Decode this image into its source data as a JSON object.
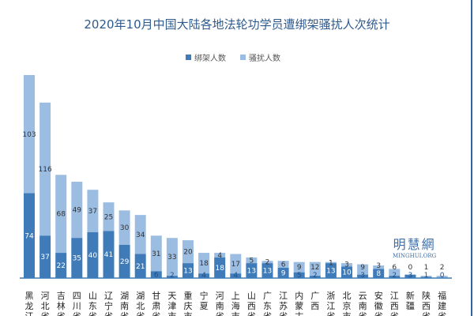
{
  "chart_data": {
    "type": "bar",
    "stacked": true,
    "title": "2020年10月中国大陆各地法轮功学员遭绑架骚扰人次统计",
    "legend_position": "top",
    "grid": false,
    "ylim": [
      0,
      180
    ],
    "categories": [
      "黑龙江",
      "河北省",
      "吉林省",
      "四川省",
      "山东省",
      "辽宁省",
      "湖南省",
      "湖北省",
      "甘肃省",
      "天津市",
      "重庆市",
      "宁夏",
      "河南省",
      "上海市",
      "山西省",
      "广东省",
      "江苏省",
      "内蒙古",
      "广西",
      "浙江省",
      "北京市",
      "云南省",
      "安徽省",
      "江西省",
      "新疆",
      "陕西省",
      "福建省"
    ],
    "series": [
      {
        "name": "绑架人数",
        "color": "#3f7bb8",
        "values": [
          74,
          37,
          22,
          35,
          40,
          41,
          29,
          21,
          6,
          2,
          13,
          4,
          18,
          4,
          13,
          13,
          9,
          5,
          2,
          13,
          10,
          3,
          8,
          2,
          3,
          1,
          0
        ]
      },
      {
        "name": "骚扰人数",
        "color": "#9cbde2",
        "values": [
          103,
          116,
          68,
          49,
          37,
          25,
          30,
          34,
          31,
          33,
          20,
          18,
          4,
          17,
          5,
          2,
          6,
          9,
          12,
          1,
          3,
          9,
          3,
          6,
          0,
          1,
          2
        ]
      }
    ]
  },
  "logo": {
    "cn": "明慧網",
    "en": "MINGHUI.ORG"
  }
}
